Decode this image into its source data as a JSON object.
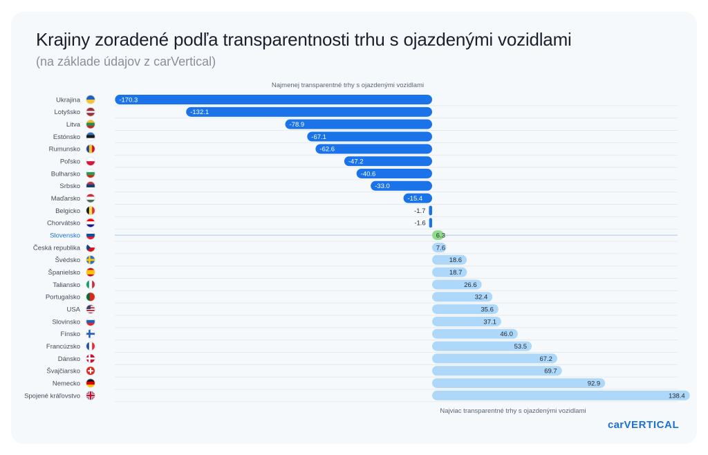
{
  "title": "Krajiny zoradené podľa transparentnosti trhu s ojazdenými vozidlami",
  "subtitle": "(na základe údajov z carVertical)",
  "top_note": "Najmenej transparentné trhy s ojazdenými vozidlami",
  "bottom_note": "Najviac transparentné trhy s ojazdenými vozidlami",
  "logo_text": "carVERTICAL",
  "colors": {
    "negative_bar": "#1a73e8",
    "positive_bar": "#aed8f9",
    "highlight_bar": "#8fdc8a",
    "highlight_line": "#9cc8f0",
    "grid": "#e4e9ef",
    "card_bg": "#f6f9fc"
  },
  "chart_data": {
    "type": "bar",
    "orientation": "horizontal",
    "categories": [
      "Ukrajina",
      "Lotyšsko",
      "Litva",
      "Estónsko",
      "Rumunsko",
      "Poľsko",
      "Bulharsko",
      "Srbsko",
      "Maďarsko",
      "Belgicko",
      "Chorvátsko",
      "Slovensko",
      "Česká republika",
      "Švédsko",
      "Španielsko",
      "Taliansko",
      "Portugalsko",
      "USA",
      "Slovinsko",
      "Fínsko",
      "Francúzsko",
      "Dánsko",
      "Švajčiarsko",
      "Nemecko",
      "Spojené kráľovstvo"
    ],
    "values": [
      -170.3,
      -132.1,
      -78.9,
      -67.1,
      -62.6,
      -47.2,
      -40.6,
      -33.0,
      -15.4,
      -1.7,
      -1.6,
      6.3,
      7.6,
      18.6,
      18.7,
      26.6,
      32.4,
      35.6,
      37.1,
      46.0,
      53.5,
      67.2,
      69.7,
      92.9,
      138.4
    ],
    "labels": [
      "-170.3",
      "-132.1",
      "-78.9",
      "-67.1",
      "-62.6",
      "-47.2",
      "-40.6",
      "-33.0",
      "-15.4",
      "-1.7",
      "-1.6",
      "6.3",
      "7.6",
      "18.6",
      "18.7",
      "26.6",
      "32.4",
      "35.6",
      "37.1",
      "46.0",
      "53.5",
      "67.2",
      "69.7",
      "92.9",
      "138.4"
    ],
    "flags": [
      "flag-ukraine-icon",
      "flag-latvia-icon",
      "flag-lithuania-icon",
      "flag-estonia-icon",
      "flag-romania-icon",
      "flag-poland-icon",
      "flag-bulgaria-icon",
      "flag-serbia-icon",
      "flag-hungary-icon",
      "flag-belgium-icon",
      "flag-croatia-icon",
      "flag-slovakia-icon",
      "flag-czechia-icon",
      "flag-sweden-icon",
      "flag-spain-icon",
      "flag-italy-icon",
      "flag-portugal-icon",
      "flag-usa-icon",
      "flag-slovenia-icon",
      "flag-finland-icon",
      "flag-france-icon",
      "flag-denmark-icon",
      "flag-switzerland-icon",
      "flag-germany-icon",
      "flag-uk-icon"
    ],
    "highlight": "Slovensko",
    "xlim": [
      -170.3,
      138.4
    ],
    "grid": true
  }
}
